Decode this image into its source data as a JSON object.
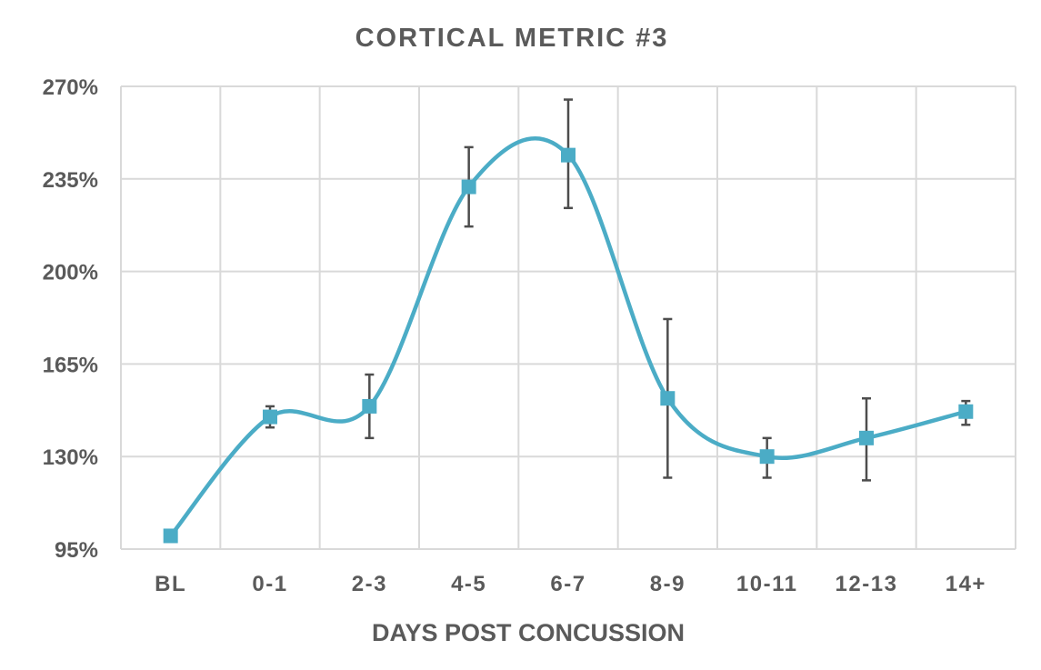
{
  "chart_data": {
    "type": "line",
    "title": "CORTICAL METRIC #3",
    "xlabel": "DAYS POST CONCUSSION",
    "ylabel": "",
    "categories": [
      "BL",
      "0-1",
      "2-3",
      "4-5",
      "6-7",
      "8-9",
      "10-11",
      "12-13",
      "14+"
    ],
    "y_ticks": [
      "95%",
      "130%",
      "165%",
      "200%",
      "235%",
      "270%"
    ],
    "ylim": [
      95,
      270
    ],
    "y_tick_step": 35,
    "smooth": true,
    "grid": true,
    "series": [
      {
        "values": [
          100,
          145,
          149,
          232,
          244,
          152,
          130,
          137,
          147
        ],
        "error_low": [
          0,
          141,
          137,
          217,
          224,
          122,
          122,
          121,
          142
        ],
        "error_high": [
          0,
          149,
          161,
          247,
          265,
          182,
          137,
          152,
          151
        ],
        "color": "#4bacc6",
        "marker": "square"
      }
    ]
  }
}
